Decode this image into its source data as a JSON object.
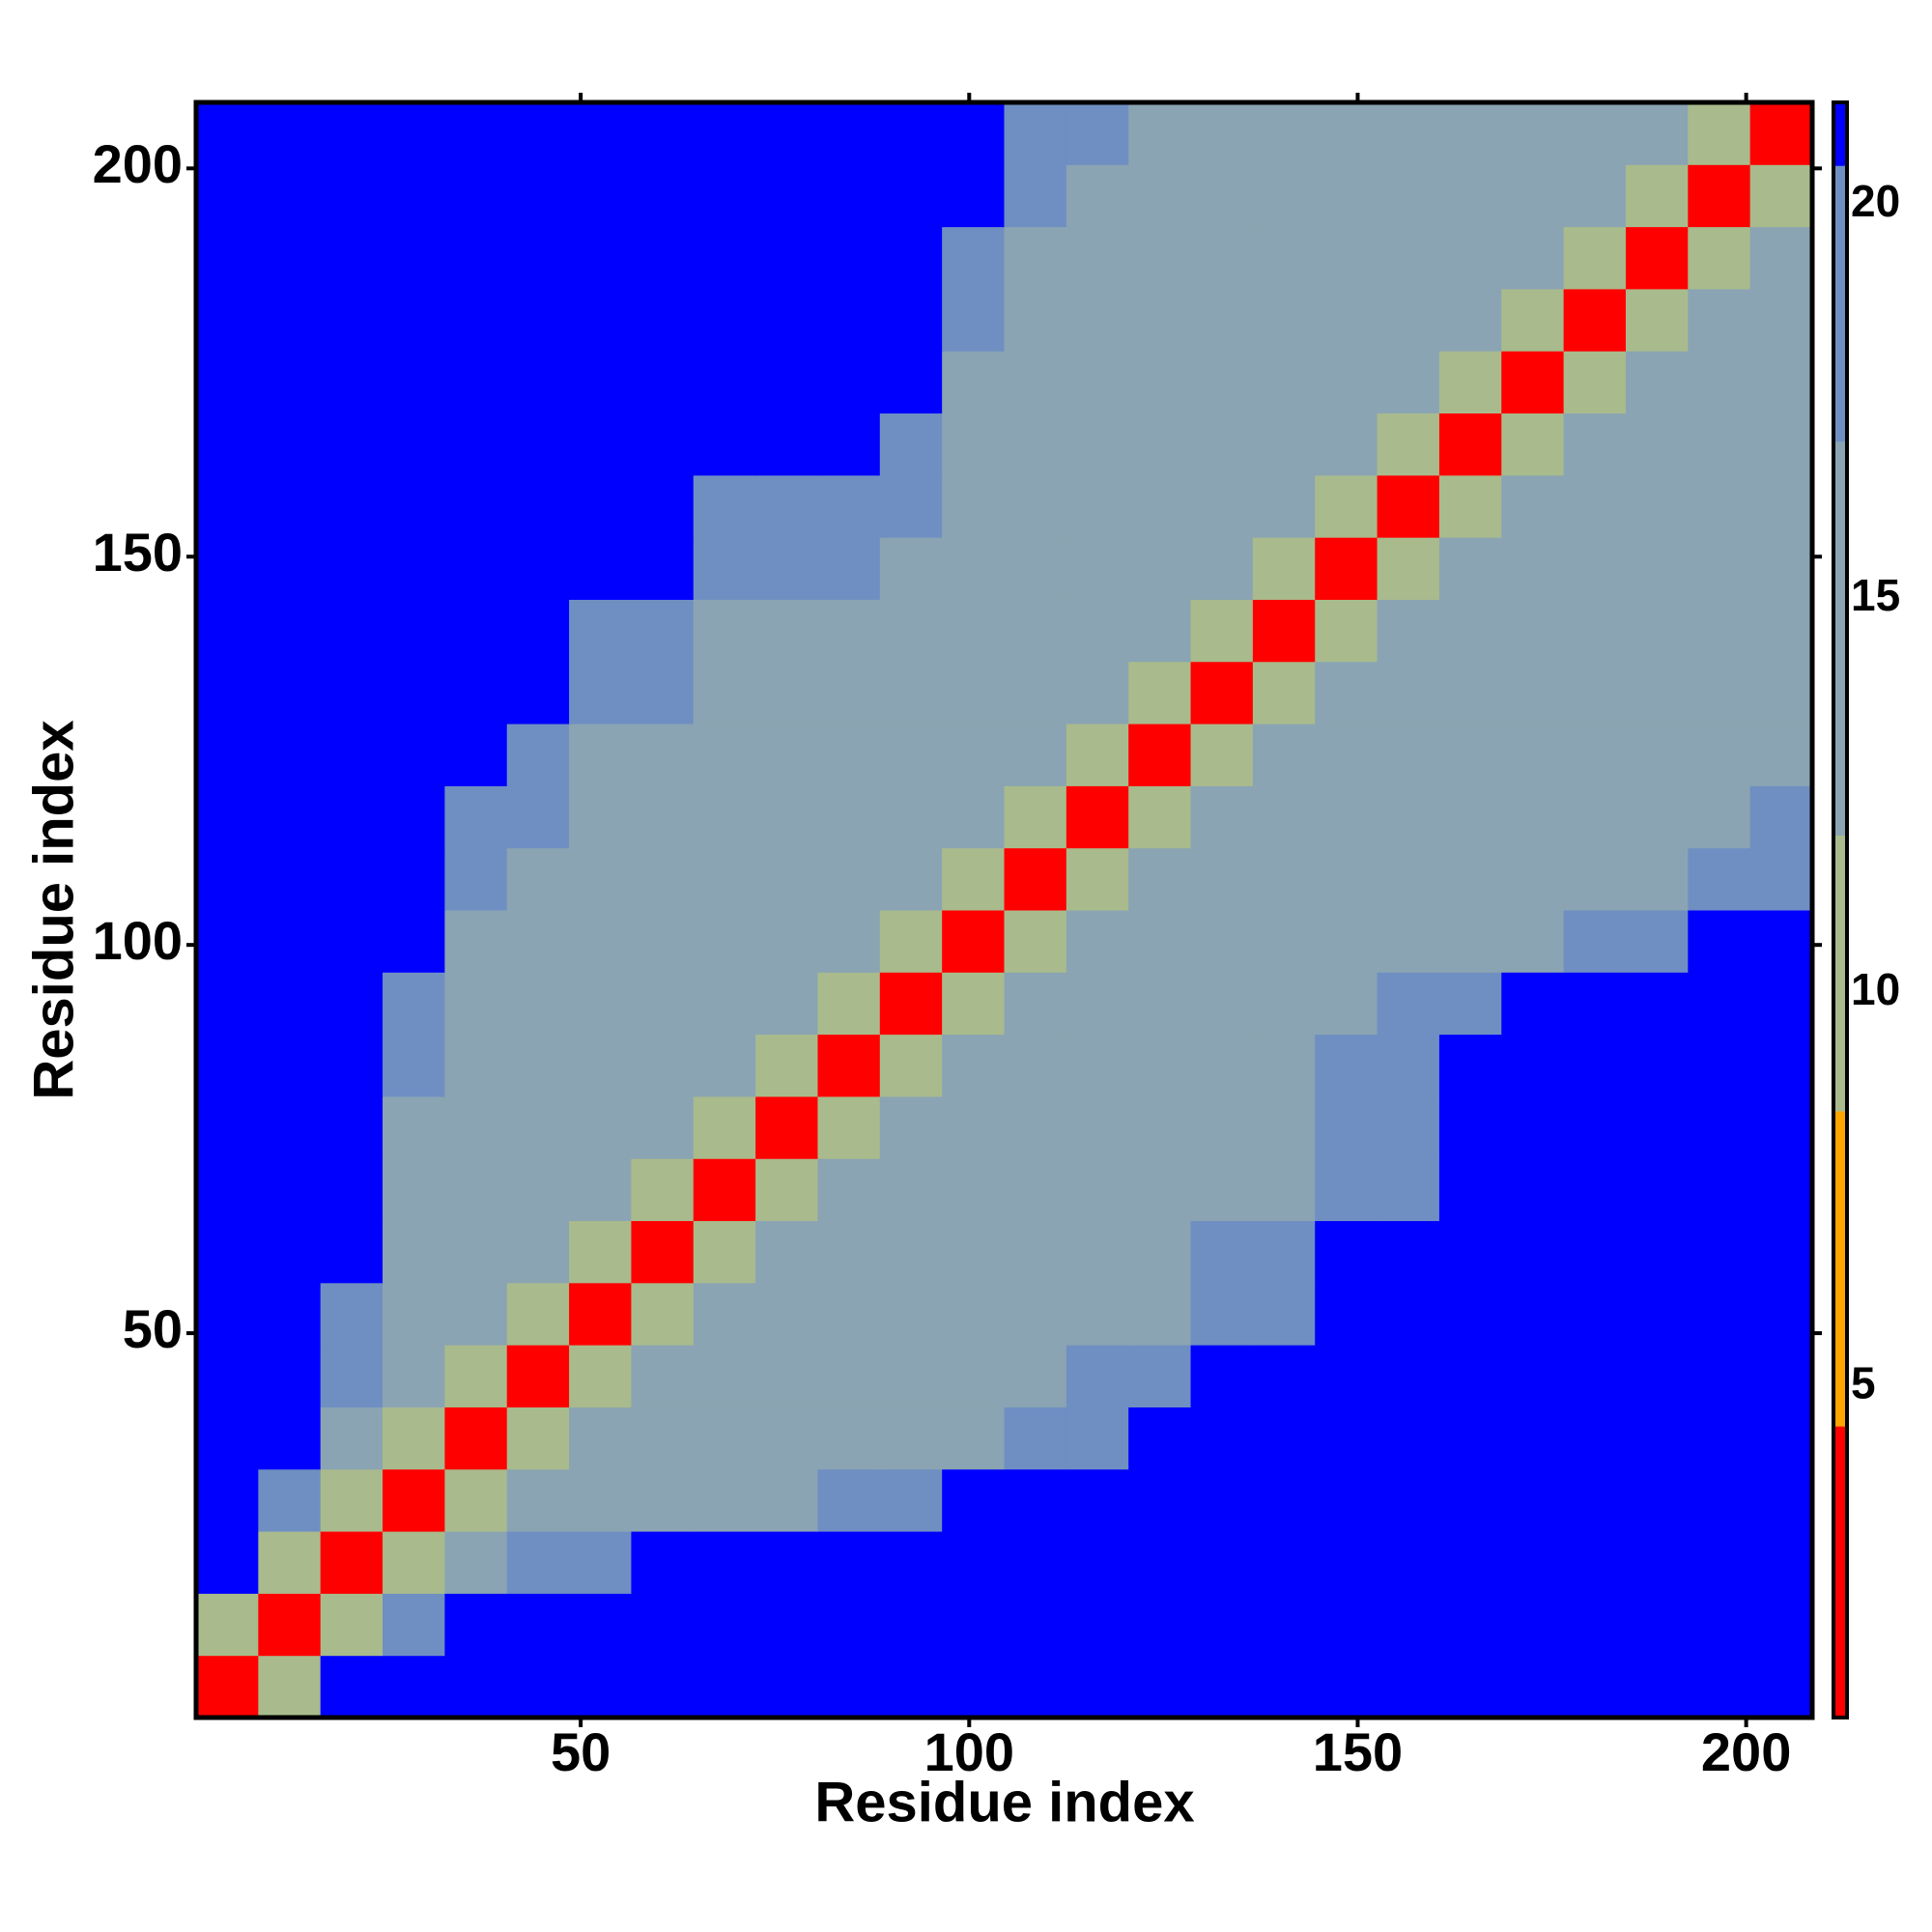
{
  "chart_data": {
    "type": "heatmap",
    "xlabel": "Residue index",
    "ylabel": "Residue index",
    "x": [
      4.5,
      12.5,
      20.5,
      28.5,
      36.5,
      44.5,
      52.5,
      60.5,
      68.5,
      76.5,
      84.5,
      92.5,
      100.5,
      108.5,
      116.5,
      124.5,
      132.5,
      140.5,
      148.5,
      156.5,
      164.5,
      172.5,
      180.5,
      188.5,
      196.5,
      204.5
    ],
    "y": [
      4.5,
      12.5,
      20.5,
      28.5,
      36.5,
      44.5,
      52.5,
      60.5,
      68.5,
      76.5,
      84.5,
      92.5,
      100.5,
      108.5,
      116.5,
      124.5,
      132.5,
      140.5,
      148.5,
      156.5,
      164.5,
      172.5,
      180.5,
      188.5,
      196.5,
      204.5
    ],
    "xlim": [
      0.5,
      208.5
    ],
    "ylim": [
      0.5,
      208.5
    ],
    "xticks": [
      50,
      100,
      150,
      200
    ],
    "yticks": [
      50,
      100,
      150,
      200
    ],
    "clim": [
      0.8,
      21.3
    ],
    "cticks": [
      5,
      10,
      15,
      20
    ],
    "colormap": [
      {
        "from": 0.8,
        "to": 4.5,
        "color": "#ff0000"
      },
      {
        "from": 4.5,
        "to": 8.5,
        "color": "#ffa500"
      },
      {
        "from": 8.5,
        "to": 12,
        "color": "#a9bb8c"
      },
      {
        "from": 12,
        "to": 17,
        "color": "#8aa4b3"
      },
      {
        "from": 17,
        "to": 20.5,
        "color": "#6f8fc2"
      },
      {
        "from": 20.5,
        "to": 21.3,
        "color": "#0000ff"
      }
    ],
    "z": [
      [
        4,
        10,
        21,
        21,
        21,
        21,
        21,
        21,
        21,
        21,
        21,
        21,
        21,
        21,
        21,
        21,
        21,
        21,
        21,
        21,
        21,
        21,
        21,
        21,
        21,
        21
      ],
      [
        10,
        4,
        10,
        18,
        21,
        21,
        21,
        21,
        21,
        21,
        21,
        21,
        21,
        21,
        21,
        21,
        21,
        21,
        21,
        21,
        21,
        21,
        21,
        21,
        21,
        21
      ],
      [
        21,
        10,
        4,
        10,
        15,
        18,
        18,
        21,
        21,
        21,
        21,
        21,
        21,
        21,
        21,
        21,
        21,
        21,
        21,
        21,
        21,
        21,
        21,
        21,
        21,
        21
      ],
      [
        21,
        18,
        10,
        4,
        10,
        15,
        15,
        15,
        15,
        15,
        18,
        18,
        21,
        21,
        21,
        21,
        21,
        21,
        21,
        21,
        21,
        21,
        21,
        21,
        21,
        21
      ],
      [
        21,
        21,
        15,
        10,
        4,
        10,
        15,
        15,
        15,
        15,
        15,
        15,
        15,
        18,
        18,
        21,
        21,
        21,
        21,
        21,
        21,
        21,
        21,
        21,
        21,
        21
      ],
      [
        21,
        21,
        18,
        15,
        10,
        4,
        10,
        15,
        15,
        15,
        15,
        15,
        15,
        15,
        18,
        18,
        21,
        21,
        21,
        21,
        21,
        21,
        21,
        21,
        21,
        21
      ],
      [
        21,
        21,
        18,
        15,
        15,
        10,
        4,
        10,
        15,
        15,
        15,
        15,
        15,
        15,
        15,
        15,
        18,
        18,
        21,
        21,
        21,
        21,
        21,
        21,
        21,
        21
      ],
      [
        21,
        21,
        21,
        15,
        15,
        15,
        10,
        4,
        10,
        15,
        15,
        15,
        15,
        15,
        15,
        15,
        18,
        18,
        21,
        21,
        21,
        21,
        21,
        21,
        21,
        21
      ],
      [
        21,
        21,
        21,
        15,
        15,
        15,
        15,
        10,
        4,
        10,
        15,
        15,
        15,
        15,
        15,
        15,
        15,
        15,
        18,
        18,
        21,
        21,
        21,
        21,
        21,
        21
      ],
      [
        21,
        21,
        21,
        15,
        15,
        15,
        15,
        15,
        10,
        4,
        10,
        15,
        15,
        15,
        15,
        15,
        15,
        15,
        18,
        18,
        21,
        21,
        21,
        21,
        21,
        21
      ],
      [
        21,
        21,
        21,
        18,
        15,
        15,
        15,
        15,
        15,
        10,
        4,
        10,
        15,
        15,
        15,
        15,
        15,
        15,
        18,
        18,
        21,
        21,
        21,
        21,
        21,
        21
      ],
      [
        21,
        21,
        21,
        18,
        15,
        15,
        15,
        15,
        15,
        15,
        10,
        4,
        10,
        15,
        15,
        15,
        15,
        15,
        15,
        18,
        18,
        21,
        21,
        21,
        21,
        21
      ],
      [
        21,
        21,
        21,
        21,
        15,
        15,
        15,
        15,
        15,
        15,
        15,
        10,
        4,
        10,
        15,
        15,
        15,
        15,
        15,
        15,
        15,
        15,
        18,
        18,
        21,
        21
      ],
      [
        21,
        21,
        21,
        21,
        18,
        15,
        15,
        15,
        15,
        15,
        15,
        15,
        10,
        4,
        10,
        15,
        15,
        15,
        15,
        15,
        15,
        15,
        15,
        15,
        18,
        18
      ],
      [
        21,
        21,
        21,
        21,
        18,
        18,
        15,
        15,
        15,
        15,
        15,
        15,
        15,
        10,
        4,
        10,
        15,
        15,
        15,
        15,
        15,
        15,
        15,
        15,
        15,
        18
      ],
      [
        21,
        21,
        21,
        21,
        21,
        18,
        15,
        15,
        15,
        15,
        15,
        15,
        15,
        15,
        10,
        4,
        10,
        15,
        15,
        15,
        15,
        15,
        15,
        15,
        15,
        15
      ],
      [
        21,
        21,
        21,
        21,
        21,
        21,
        18,
        18,
        15,
        15,
        15,
        15,
        15,
        15,
        15,
        10,
        4,
        10,
        15,
        15,
        15,
        15,
        15,
        15,
        15,
        15
      ],
      [
        21,
        21,
        21,
        21,
        21,
        21,
        18,
        18,
        15,
        15,
        15,
        15,
        15,
        15,
        15,
        15,
        10,
        4,
        10,
        15,
        15,
        15,
        15,
        15,
        15,
        15
      ],
      [
        21,
        21,
        21,
        21,
        21,
        21,
        21,
        21,
        18,
        18,
        18,
        15,
        15,
        15,
        15,
        15,
        15,
        10,
        4,
        10,
        15,
        15,
        15,
        15,
        15,
        15
      ],
      [
        21,
        21,
        21,
        21,
        21,
        21,
        21,
        21,
        18,
        18,
        18,
        18,
        15,
        15,
        15,
        15,
        15,
        15,
        10,
        4,
        10,
        15,
        15,
        15,
        15,
        15
      ],
      [
        21,
        21,
        21,
        21,
        21,
        21,
        21,
        21,
        21,
        21,
        21,
        18,
        15,
        15,
        15,
        15,
        15,
        15,
        15,
        10,
        4,
        10,
        15,
        15,
        15,
        15
      ],
      [
        21,
        21,
        21,
        21,
        21,
        21,
        21,
        21,
        21,
        21,
        21,
        21,
        15,
        15,
        15,
        15,
        15,
        15,
        15,
        15,
        10,
        4,
        10,
        15,
        15,
        15
      ],
      [
        21,
        21,
        21,
        21,
        21,
        21,
        21,
        21,
        21,
        21,
        21,
        21,
        18,
        15,
        15,
        15,
        15,
        15,
        15,
        15,
        15,
        10,
        4,
        10,
        15,
        15
      ],
      [
        21,
        21,
        21,
        21,
        21,
        21,
        21,
        21,
        21,
        21,
        21,
        21,
        18,
        15,
        15,
        15,
        15,
        15,
        15,
        15,
        15,
        15,
        10,
        4,
        10,
        15
      ],
      [
        21,
        21,
        21,
        21,
        21,
        21,
        21,
        21,
        21,
        21,
        21,
        21,
        21,
        18,
        15,
        15,
        15,
        15,
        15,
        15,
        15,
        15,
        15,
        10,
        4,
        10
      ],
      [
        21,
        21,
        21,
        21,
        21,
        21,
        21,
        21,
        21,
        21,
        21,
        21,
        21,
        18,
        18,
        15,
        15,
        15,
        15,
        15,
        15,
        15,
        15,
        15,
        10,
        4
      ]
    ]
  }
}
